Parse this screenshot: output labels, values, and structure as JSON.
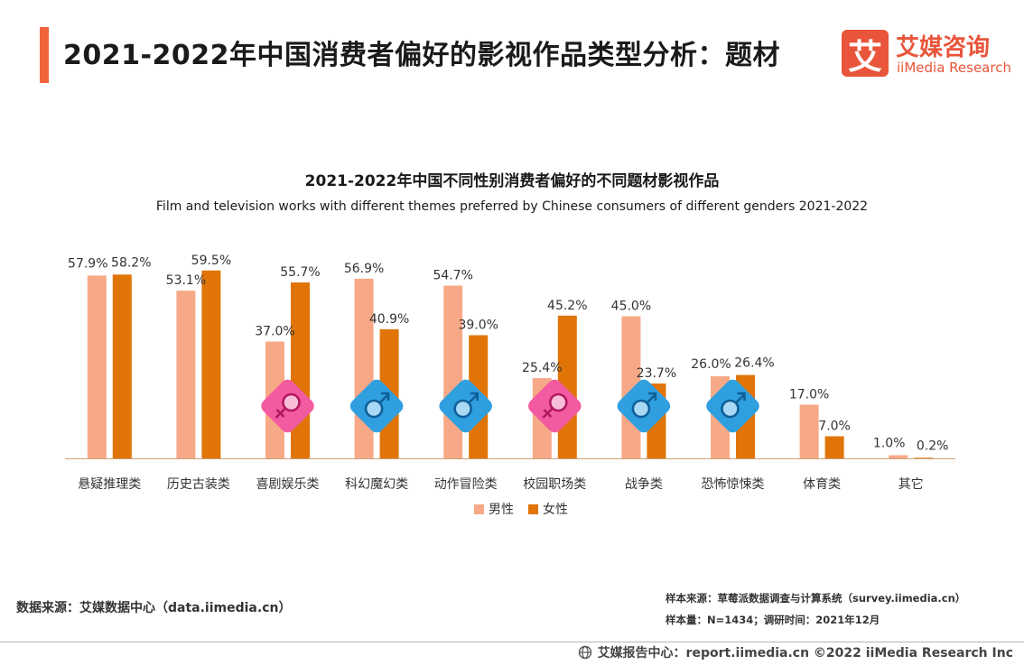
{
  "header": {
    "title": "2021-2022年中国消费者偏好的影视作品类型分析：题材",
    "accent_color": "#f0643c"
  },
  "logo": {
    "glyph": "艾",
    "cn": "艾媒咨询",
    "en": "iiMedia Research",
    "color": "#e8553a"
  },
  "chart_data": {
    "type": "bar",
    "title": "2021-2022年中国不同性别消费者偏好的不同题材影视作品",
    "subtitle": "Film and television works with different themes preferred by Chinese consumers of different genders 2021-2022",
    "categories": [
      "悬疑推理类",
      "历史古装类",
      "喜剧娱乐类",
      "科幻魔幻类",
      "动作冒险类",
      "校园职场类",
      "战争类",
      "恐怖惊悚类",
      "体育类",
      "其它"
    ],
    "series": [
      {
        "name": "男性",
        "color": "#f7a987",
        "values": [
          57.9,
          53.1,
          37.0,
          56.9,
          54.7,
          25.4,
          45.0,
          26.0,
          17.0,
          1.0
        ]
      },
      {
        "name": "女性",
        "color": "#e07406",
        "values": [
          58.2,
          59.5,
          55.7,
          40.9,
          39.0,
          45.2,
          23.7,
          26.4,
          7.0,
          0.2
        ]
      }
    ],
    "value_suffix": "%",
    "ylim": [
      0,
      60
    ],
    "grid": false,
    "legend_position": "bottom",
    "gender_icons": [
      {
        "category_index": 2,
        "kind": "female-icon",
        "color": "#f25ba0"
      },
      {
        "category_index": 3,
        "kind": "male-icon",
        "color": "#2f9fe0"
      },
      {
        "category_index": 4,
        "kind": "male-icon",
        "color": "#2f9fe0"
      },
      {
        "category_index": 5,
        "kind": "female-icon",
        "color": "#f25ba0"
      },
      {
        "category_index": 6,
        "kind": "male-icon",
        "color": "#2f9fe0"
      },
      {
        "category_index": 7,
        "kind": "male-icon",
        "color": "#2f9fe0"
      }
    ]
  },
  "source": {
    "left": "数据来源：艾媒数据中心（data.iimedia.cn）",
    "sample_source": "样本来源：草莓派数据调查与计算系统（survey.iimedia.cn）",
    "sample_info": "样本量：N=1434；调研时间：2021年12月"
  },
  "footer": {
    "text": "艾媒报告中心：report.iimedia.cn  ©2022  iiMedia Research  Inc"
  }
}
